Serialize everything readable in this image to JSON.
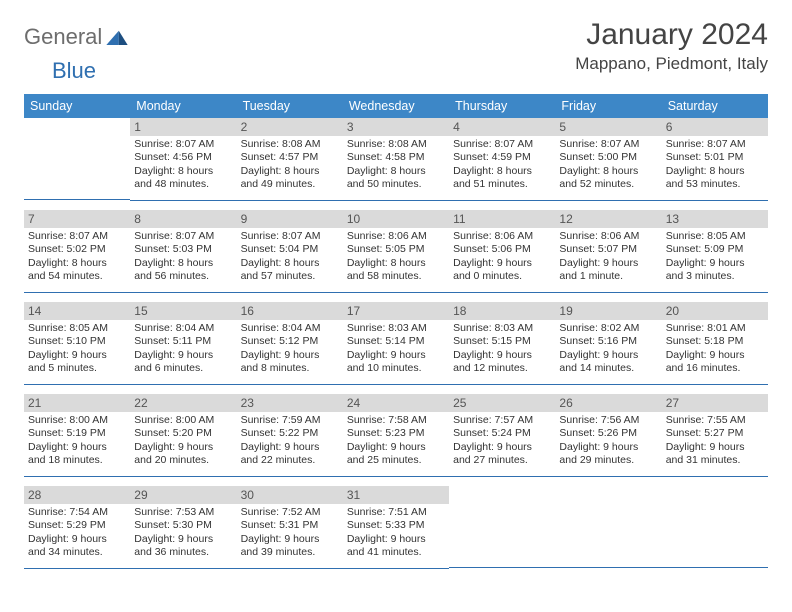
{
  "header": {
    "logo_word1": "General",
    "logo_word2": "Blue",
    "month_title": "January 2024",
    "location": "Mappano, Piedmont, Italy"
  },
  "colors": {
    "header_bg": "#3d87c7",
    "daynum_bg": "#dadada",
    "row_divider": "#2f6fb0",
    "logo_blue": "#2f6fb0",
    "logo_gray": "#6d6d6d",
    "text": "#333333"
  },
  "weekdays": [
    "Sunday",
    "Monday",
    "Tuesday",
    "Wednesday",
    "Thursday",
    "Friday",
    "Saturday"
  ],
  "weeks": [
    [
      {
        "num": "",
        "sunrise": "",
        "sunset": "",
        "daylight1": "",
        "daylight2": ""
      },
      {
        "num": "1",
        "sunrise": "Sunrise: 8:07 AM",
        "sunset": "Sunset: 4:56 PM",
        "daylight1": "Daylight: 8 hours",
        "daylight2": "and 48 minutes."
      },
      {
        "num": "2",
        "sunrise": "Sunrise: 8:08 AM",
        "sunset": "Sunset: 4:57 PM",
        "daylight1": "Daylight: 8 hours",
        "daylight2": "and 49 minutes."
      },
      {
        "num": "3",
        "sunrise": "Sunrise: 8:08 AM",
        "sunset": "Sunset: 4:58 PM",
        "daylight1": "Daylight: 8 hours",
        "daylight2": "and 50 minutes."
      },
      {
        "num": "4",
        "sunrise": "Sunrise: 8:07 AM",
        "sunset": "Sunset: 4:59 PM",
        "daylight1": "Daylight: 8 hours",
        "daylight2": "and 51 minutes."
      },
      {
        "num": "5",
        "sunrise": "Sunrise: 8:07 AM",
        "sunset": "Sunset: 5:00 PM",
        "daylight1": "Daylight: 8 hours",
        "daylight2": "and 52 minutes."
      },
      {
        "num": "6",
        "sunrise": "Sunrise: 8:07 AM",
        "sunset": "Sunset: 5:01 PM",
        "daylight1": "Daylight: 8 hours",
        "daylight2": "and 53 minutes."
      }
    ],
    [
      {
        "num": "7",
        "sunrise": "Sunrise: 8:07 AM",
        "sunset": "Sunset: 5:02 PM",
        "daylight1": "Daylight: 8 hours",
        "daylight2": "and 54 minutes."
      },
      {
        "num": "8",
        "sunrise": "Sunrise: 8:07 AM",
        "sunset": "Sunset: 5:03 PM",
        "daylight1": "Daylight: 8 hours",
        "daylight2": "and 56 minutes."
      },
      {
        "num": "9",
        "sunrise": "Sunrise: 8:07 AM",
        "sunset": "Sunset: 5:04 PM",
        "daylight1": "Daylight: 8 hours",
        "daylight2": "and 57 minutes."
      },
      {
        "num": "10",
        "sunrise": "Sunrise: 8:06 AM",
        "sunset": "Sunset: 5:05 PM",
        "daylight1": "Daylight: 8 hours",
        "daylight2": "and 58 minutes."
      },
      {
        "num": "11",
        "sunrise": "Sunrise: 8:06 AM",
        "sunset": "Sunset: 5:06 PM",
        "daylight1": "Daylight: 9 hours",
        "daylight2": "and 0 minutes."
      },
      {
        "num": "12",
        "sunrise": "Sunrise: 8:06 AM",
        "sunset": "Sunset: 5:07 PM",
        "daylight1": "Daylight: 9 hours",
        "daylight2": "and 1 minute."
      },
      {
        "num": "13",
        "sunrise": "Sunrise: 8:05 AM",
        "sunset": "Sunset: 5:09 PM",
        "daylight1": "Daylight: 9 hours",
        "daylight2": "and 3 minutes."
      }
    ],
    [
      {
        "num": "14",
        "sunrise": "Sunrise: 8:05 AM",
        "sunset": "Sunset: 5:10 PM",
        "daylight1": "Daylight: 9 hours",
        "daylight2": "and 5 minutes."
      },
      {
        "num": "15",
        "sunrise": "Sunrise: 8:04 AM",
        "sunset": "Sunset: 5:11 PM",
        "daylight1": "Daylight: 9 hours",
        "daylight2": "and 6 minutes."
      },
      {
        "num": "16",
        "sunrise": "Sunrise: 8:04 AM",
        "sunset": "Sunset: 5:12 PM",
        "daylight1": "Daylight: 9 hours",
        "daylight2": "and 8 minutes."
      },
      {
        "num": "17",
        "sunrise": "Sunrise: 8:03 AM",
        "sunset": "Sunset: 5:14 PM",
        "daylight1": "Daylight: 9 hours",
        "daylight2": "and 10 minutes."
      },
      {
        "num": "18",
        "sunrise": "Sunrise: 8:03 AM",
        "sunset": "Sunset: 5:15 PM",
        "daylight1": "Daylight: 9 hours",
        "daylight2": "and 12 minutes."
      },
      {
        "num": "19",
        "sunrise": "Sunrise: 8:02 AM",
        "sunset": "Sunset: 5:16 PM",
        "daylight1": "Daylight: 9 hours",
        "daylight2": "and 14 minutes."
      },
      {
        "num": "20",
        "sunrise": "Sunrise: 8:01 AM",
        "sunset": "Sunset: 5:18 PM",
        "daylight1": "Daylight: 9 hours",
        "daylight2": "and 16 minutes."
      }
    ],
    [
      {
        "num": "21",
        "sunrise": "Sunrise: 8:00 AM",
        "sunset": "Sunset: 5:19 PM",
        "daylight1": "Daylight: 9 hours",
        "daylight2": "and 18 minutes."
      },
      {
        "num": "22",
        "sunrise": "Sunrise: 8:00 AM",
        "sunset": "Sunset: 5:20 PM",
        "daylight1": "Daylight: 9 hours",
        "daylight2": "and 20 minutes."
      },
      {
        "num": "23",
        "sunrise": "Sunrise: 7:59 AM",
        "sunset": "Sunset: 5:22 PM",
        "daylight1": "Daylight: 9 hours",
        "daylight2": "and 22 minutes."
      },
      {
        "num": "24",
        "sunrise": "Sunrise: 7:58 AM",
        "sunset": "Sunset: 5:23 PM",
        "daylight1": "Daylight: 9 hours",
        "daylight2": "and 25 minutes."
      },
      {
        "num": "25",
        "sunrise": "Sunrise: 7:57 AM",
        "sunset": "Sunset: 5:24 PM",
        "daylight1": "Daylight: 9 hours",
        "daylight2": "and 27 minutes."
      },
      {
        "num": "26",
        "sunrise": "Sunrise: 7:56 AM",
        "sunset": "Sunset: 5:26 PM",
        "daylight1": "Daylight: 9 hours",
        "daylight2": "and 29 minutes."
      },
      {
        "num": "27",
        "sunrise": "Sunrise: 7:55 AM",
        "sunset": "Sunset: 5:27 PM",
        "daylight1": "Daylight: 9 hours",
        "daylight2": "and 31 minutes."
      }
    ],
    [
      {
        "num": "28",
        "sunrise": "Sunrise: 7:54 AM",
        "sunset": "Sunset: 5:29 PM",
        "daylight1": "Daylight: 9 hours",
        "daylight2": "and 34 minutes."
      },
      {
        "num": "29",
        "sunrise": "Sunrise: 7:53 AM",
        "sunset": "Sunset: 5:30 PM",
        "daylight1": "Daylight: 9 hours",
        "daylight2": "and 36 minutes."
      },
      {
        "num": "30",
        "sunrise": "Sunrise: 7:52 AM",
        "sunset": "Sunset: 5:31 PM",
        "daylight1": "Daylight: 9 hours",
        "daylight2": "and 39 minutes."
      },
      {
        "num": "31",
        "sunrise": "Sunrise: 7:51 AM",
        "sunset": "Sunset: 5:33 PM",
        "daylight1": "Daylight: 9 hours",
        "daylight2": "and 41 minutes."
      },
      {
        "num": "",
        "sunrise": "",
        "sunset": "",
        "daylight1": "",
        "daylight2": ""
      },
      {
        "num": "",
        "sunrise": "",
        "sunset": "",
        "daylight1": "",
        "daylight2": ""
      },
      {
        "num": "",
        "sunrise": "",
        "sunset": "",
        "daylight1": "",
        "daylight2": ""
      }
    ]
  ]
}
